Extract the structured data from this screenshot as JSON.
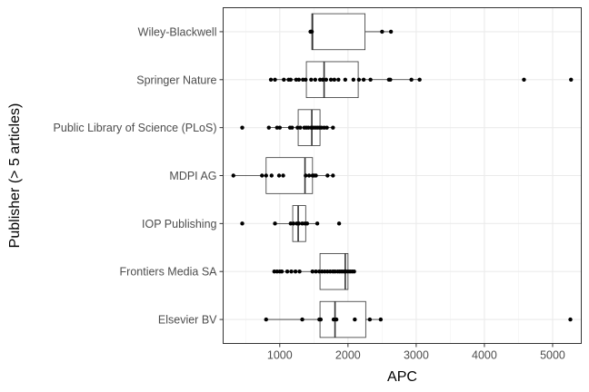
{
  "chart_data": {
    "type": "boxplot",
    "title": "",
    "xlabel": "APC",
    "ylabel": "Publisher (> 5 articles)",
    "xlim": [
      170,
      5420
    ],
    "x_ticks": [
      1000,
      2000,
      3000,
      4000,
      5000
    ],
    "x_minor_ticks": [
      500,
      1500,
      2500,
      3500,
      4500
    ],
    "grid": true,
    "legend": "none",
    "categories": [
      "Wiley-Blackwell",
      "Springer Nature",
      "Public Library of Science (PLoS)",
      "MDPI AG",
      "IOP Publishing",
      "Frontiers Media SA",
      "Elsevier BV"
    ],
    "boxes": [
      {
        "q1": 1470,
        "median": 1480,
        "q3": 2250,
        "whisker_low": 1450,
        "whisker_high": 2630,
        "points": [
          1450,
          1460,
          1470,
          2500,
          2630
        ]
      },
      {
        "q1": 1390,
        "median": 1650,
        "q3": 2150,
        "whisker_low": 870,
        "whisker_high": 3050,
        "points": [
          870,
          930,
          1060,
          1130,
          1160,
          1240,
          1280,
          1340,
          1380,
          1460,
          1520,
          1590,
          1630,
          1680,
          1750,
          1800,
          1860,
          1960,
          2080,
          2160,
          2230,
          2330,
          2600,
          2620,
          2930,
          3050,
          4580,
          5270
        ]
      },
      {
        "q1": 1270,
        "median": 1470,
        "q3": 1590,
        "whisker_low": 840,
        "whisker_high": 1780,
        "points": [
          450,
          840,
          960,
          1000,
          1150,
          1180,
          1260,
          1300,
          1360,
          1390,
          1420,
          1460,
          1490,
          1520,
          1550,
          1580,
          1610,
          1650,
          1690,
          1780
        ]
      },
      {
        "q1": 800,
        "median": 1370,
        "q3": 1480,
        "whisker_low": 320,
        "whisker_high": 1780,
        "points": [
          320,
          740,
          800,
          880,
          990,
          1050,
          1380,
          1430,
          1480,
          1500,
          1530,
          1700,
          1780
        ]
      },
      {
        "q1": 1190,
        "median": 1270,
        "q3": 1380,
        "whisker_low": 930,
        "whisker_high": 1550,
        "points": [
          450,
          930,
          1160,
          1200,
          1250,
          1280,
          1330,
          1370,
          1400,
          1550,
          1870
        ]
      },
      {
        "q1": 1590,
        "median": 1960,
        "q3": 2000,
        "whisker_low": 920,
        "whisker_high": 2090,
        "points": [
          920,
          960,
          1000,
          1030,
          1110,
          1170,
          1230,
          1290,
          1480,
          1530,
          1580,
          1620,
          1660,
          1700,
          1740,
          1780,
          1810,
          1850,
          1880,
          1910,
          1940,
          1970,
          2000,
          2030,
          2060,
          2090
        ]
      },
      {
        "q1": 1590,
        "median": 1810,
        "q3": 2260,
        "whisker_low": 800,
        "whisker_high": 2480,
        "points": [
          800,
          1330,
          1580,
          1600,
          1790,
          1830,
          2100,
          2320,
          2480,
          5260
        ]
      }
    ]
  }
}
